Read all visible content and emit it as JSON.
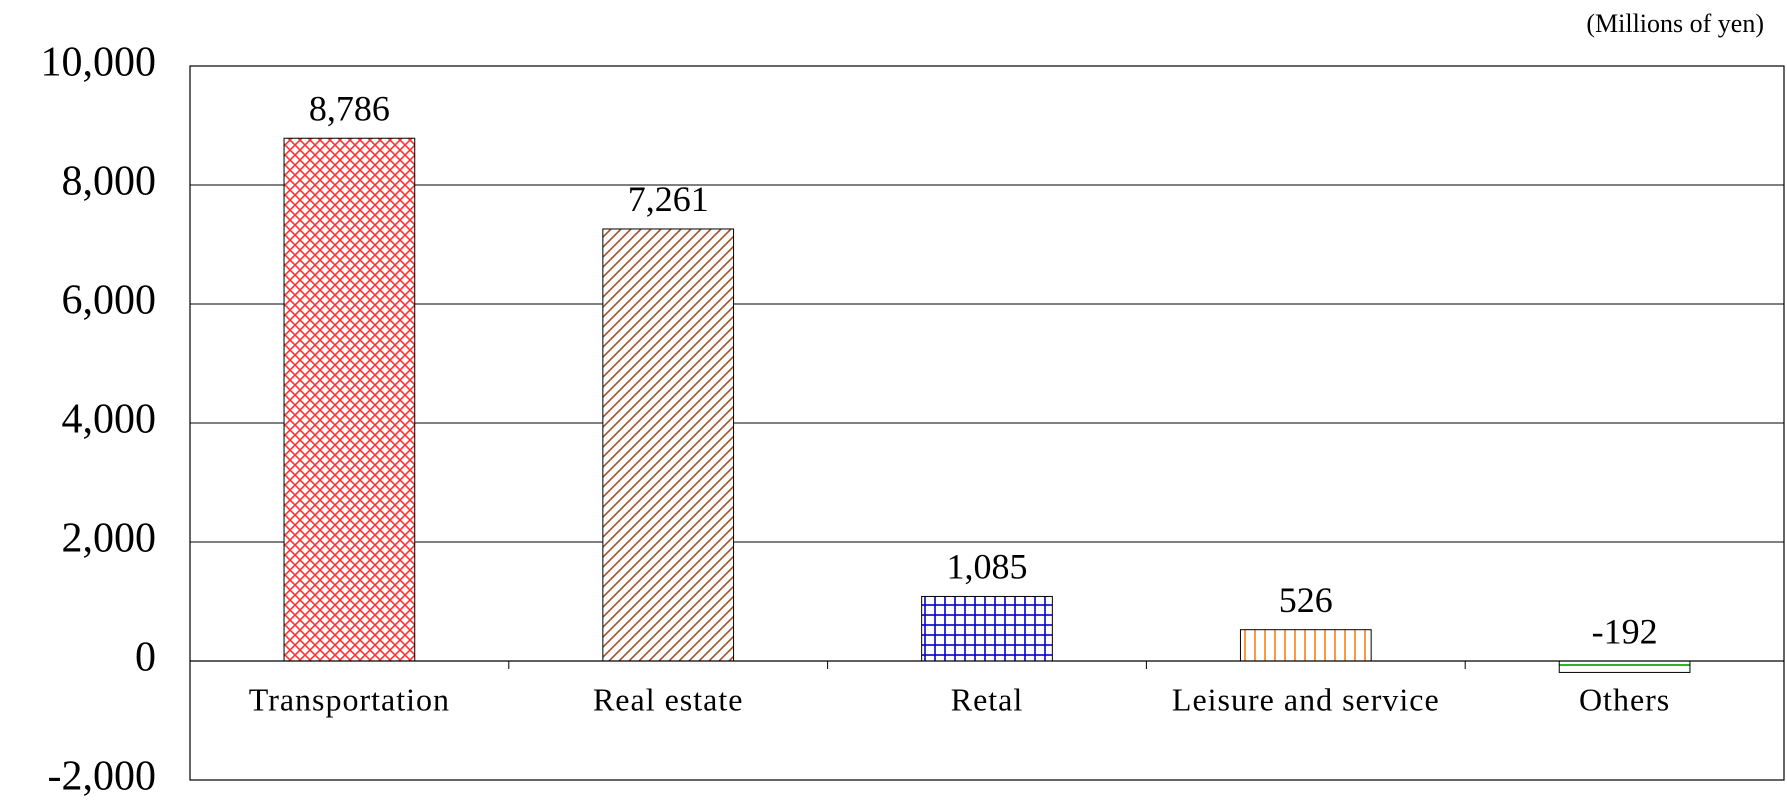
{
  "chart_data": {
    "type": "bar",
    "unit": "(Millions of yen)",
    "categories": [
      "Transportation",
      "Real estate",
      "Retal",
      "Leisure and service",
      "Others"
    ],
    "values": [
      8786,
      7261,
      1085,
      526,
      -192
    ],
    "value_labels": [
      "8,786",
      "7,261",
      "1,085",
      "526",
      "-192"
    ],
    "colors": [
      "#ff3333",
      "#a0522d",
      "#0000cc",
      "#ff7f0e",
      "#009900"
    ],
    "patterns": [
      "crosshatch",
      "diagonal",
      "grid",
      "vertical",
      "horizontal"
    ],
    "ylim": [
      -2000,
      10000
    ],
    "yticks": [
      {
        "value": -2000,
        "label": "-2,000"
      },
      0,
      {
        "value": 2000,
        "label": "2,000"
      },
      {
        "value": 4000,
        "label": "4,000"
      },
      {
        "value": 6000,
        "label": "6,000"
      },
      {
        "value": 8000,
        "label": "8,000"
      },
      {
        "value": 10000,
        "label": "10,000"
      }
    ],
    "grid": true
  }
}
